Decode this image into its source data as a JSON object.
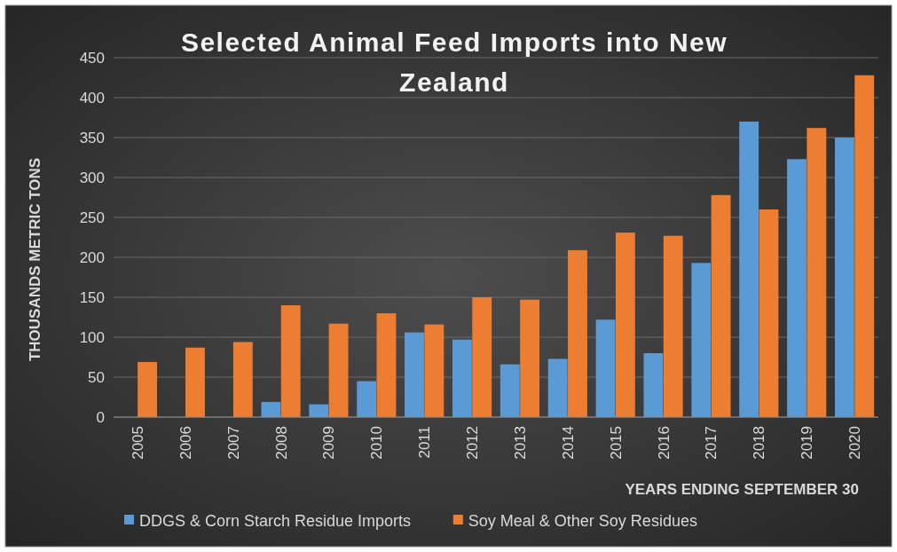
{
  "chart_data": {
    "type": "bar",
    "title": "Selected Animal Feed Imports into New Zealand",
    "xlabel": "YEARS ENDING SEPTEMBER 30",
    "ylabel": "THOUSANDS METRIC TONS",
    "categories": [
      "2005",
      "2006",
      "2007",
      "2008",
      "2009",
      "2010",
      "2011",
      "2012",
      "2013",
      "2014",
      "2015",
      "2016",
      "2017",
      "2018",
      "2019",
      "2020"
    ],
    "series": [
      {
        "name": "DDGS & Corn Starch Residue Imports",
        "color": "#5b9bd5",
        "values": [
          null,
          null,
          null,
          19,
          16,
          45,
          106,
          97,
          66,
          73,
          122,
          80,
          193,
          370,
          323,
          350
        ]
      },
      {
        "name": "Soy Meal & Other Soy Residues",
        "color": "#ed7d31",
        "values": [
          69,
          87,
          94,
          140,
          117,
          130,
          116,
          150,
          147,
          209,
          231,
          227,
          278,
          260,
          362,
          428
        ]
      }
    ],
    "ylim": [
      0,
      450
    ],
    "yticks": [
      0,
      50,
      100,
      150,
      200,
      250,
      300,
      350,
      400,
      450
    ],
    "grid": "y",
    "legend": "bottom"
  }
}
